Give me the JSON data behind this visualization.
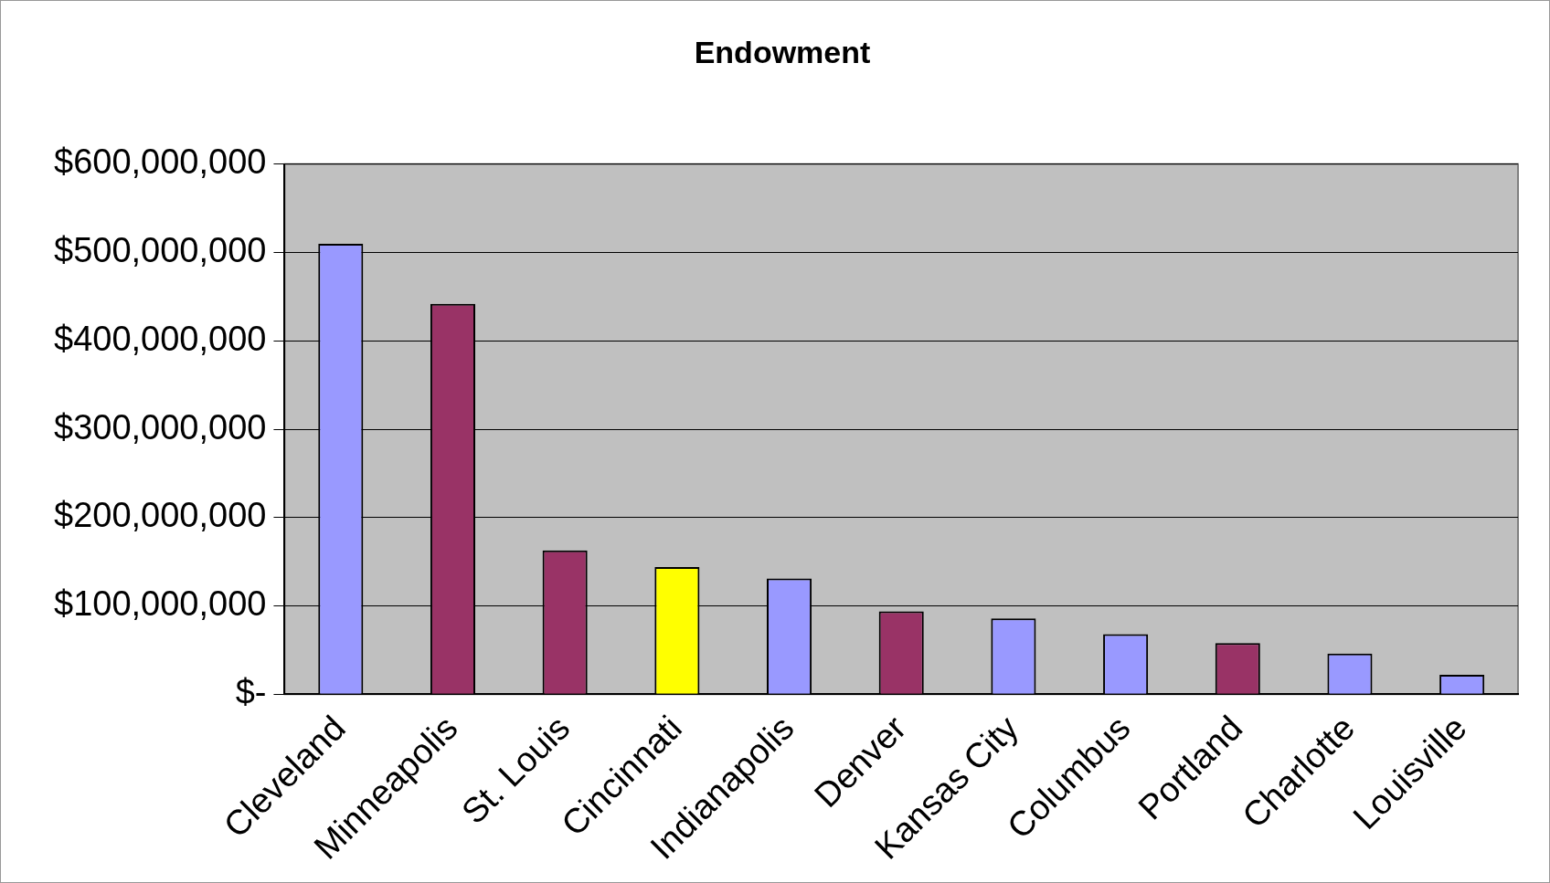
{
  "chart_data": {
    "type": "bar",
    "title": "Endowment",
    "categories": [
      "Cleveland",
      "Minneapolis",
      "St. Louis",
      "Cincinnati",
      "Indianapolis",
      "Denver",
      "Kansas City",
      "Columbus",
      "Portland",
      "Charlotte",
      "Louisville"
    ],
    "values": [
      510000000,
      442000000,
      163000000,
      144000000,
      131000000,
      94000000,
      86000000,
      68000000,
      58000000,
      46000000,
      22000000
    ],
    "colors": [
      "#9999ff",
      "#993366",
      "#993366",
      "#ffff00",
      "#9999ff",
      "#993366",
      "#9999ff",
      "#9999ff",
      "#993366",
      "#9999ff",
      "#9999ff"
    ],
    "ylim": [
      0,
      600000000
    ],
    "yticks": [
      {
        "value": 0,
        "label": "$-"
      },
      {
        "value": 100000000,
        "label": "$100,000,000"
      },
      {
        "value": 200000000,
        "label": "$200,000,000"
      },
      {
        "value": 300000000,
        "label": "$300,000,000"
      },
      {
        "value": 400000000,
        "label": "$400,000,000"
      },
      {
        "value": 500000000,
        "label": "$500,000,000"
      },
      {
        "value": 600000000,
        "label": "$600,000,000"
      }
    ],
    "grid": "y",
    "legend": false
  }
}
